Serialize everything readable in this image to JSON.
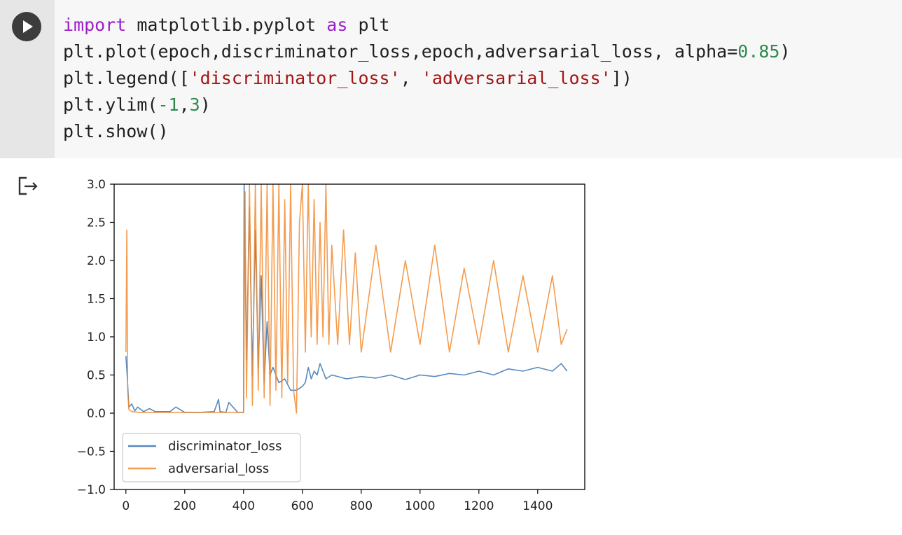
{
  "cell": {
    "run_button_icon": "play-icon",
    "code_lines": [
      [
        {
          "t": "import",
          "c": "kw"
        },
        {
          "t": " matplotlib.pyplot ",
          "c": ""
        },
        {
          "t": "as",
          "c": "kw"
        },
        {
          "t": " plt",
          "c": ""
        }
      ],
      [
        {
          "t": "plt.plot(epoch,discriminator_loss,epoch,adversarial_loss, alpha=",
          "c": ""
        },
        {
          "t": "0.85",
          "c": "num"
        },
        {
          "t": ")",
          "c": ""
        }
      ],
      [
        {
          "t": "plt.legend([",
          "c": ""
        },
        {
          "t": "'discriminator_loss'",
          "c": "str"
        },
        {
          "t": ", ",
          "c": ""
        },
        {
          "t": "'adversarial_loss'",
          "c": "str"
        },
        {
          "t": "])",
          "c": ""
        }
      ],
      [
        {
          "t": "plt.ylim(",
          "c": ""
        },
        {
          "t": "-1",
          "c": "num"
        },
        {
          "t": ",",
          "c": ""
        },
        {
          "t": "3",
          "c": "num"
        },
        {
          "t": ")",
          "c": ""
        }
      ],
      [
        {
          "t": "plt.show()",
          "c": ""
        }
      ]
    ]
  },
  "output": {
    "output_icon": "output-arrow-icon"
  },
  "colors": {
    "series_blue": "#3b76b4",
    "series_orange": "#f28b30"
  },
  "chart_data": {
    "type": "line",
    "title": "",
    "xlabel": "",
    "ylabel": "",
    "xlim": [
      -40,
      1560
    ],
    "ylim": [
      -1,
      3
    ],
    "xticks": [
      0,
      200,
      400,
      600,
      800,
      1000,
      1200,
      1400
    ],
    "yticks": [
      3.0,
      2.5,
      2.0,
      1.5,
      1.0,
      0.5,
      0.0,
      -0.5,
      -1.0
    ],
    "ytick_labels": [
      "3.0",
      "2.5",
      "2.0",
      "1.5",
      "1.0",
      "0.5",
      "0.0",
      "−0.5",
      "−1.0"
    ],
    "legend_position": "lower-left",
    "grid": false,
    "series": [
      {
        "name": "discriminator_loss",
        "color": "#3b76b4",
        "x": [
          0,
          5,
          10,
          20,
          30,
          40,
          60,
          80,
          100,
          150,
          170,
          200,
          250,
          300,
          315,
          320,
          340,
          350,
          380,
          400,
          402,
          410,
          420,
          430,
          440,
          450,
          460,
          470,
          480,
          490,
          500,
          520,
          540,
          560,
          580,
          600,
          610,
          620,
          630,
          640,
          650,
          660,
          680,
          700,
          750,
          800,
          850,
          900,
          950,
          1000,
          1050,
          1100,
          1150,
          1200,
          1250,
          1300,
          1350,
          1400,
          1450,
          1480,
          1500
        ],
        "y": [
          0.75,
          0.45,
          0.08,
          0.12,
          0.03,
          0.08,
          0.02,
          0.06,
          0.02,
          0.02,
          0.08,
          0.01,
          0.01,
          0.02,
          0.18,
          0.02,
          0.01,
          0.14,
          0.01,
          0.01,
          3.0,
          0.7,
          2.7,
          0.5,
          2.4,
          0.6,
          1.8,
          0.4,
          1.2,
          0.5,
          0.6,
          0.4,
          0.45,
          0.3,
          0.3,
          0.35,
          0.4,
          0.6,
          0.45,
          0.55,
          0.5,
          0.65,
          0.45,
          0.5,
          0.45,
          0.48,
          0.46,
          0.5,
          0.44,
          0.5,
          0.48,
          0.52,
          0.5,
          0.55,
          0.5,
          0.58,
          0.55,
          0.6,
          0.55,
          0.65,
          0.55
        ]
      },
      {
        "name": "adversarial_loss",
        "color": "#f28b30",
        "x": [
          0,
          3,
          6,
          10,
          20,
          50,
          100,
          200,
          300,
          400,
          405,
          410,
          420,
          430,
          440,
          450,
          460,
          470,
          480,
          490,
          500,
          510,
          520,
          530,
          540,
          550,
          560,
          570,
          580,
          590,
          600,
          610,
          620,
          630,
          640,
          650,
          660,
          670,
          680,
          690,
          700,
          720,
          740,
          760,
          780,
          800,
          850,
          900,
          950,
          1000,
          1050,
          1100,
          1150,
          1200,
          1250,
          1300,
          1350,
          1400,
          1450,
          1480,
          1500
        ],
        "y": [
          0.8,
          2.4,
          0.3,
          0.05,
          0.02,
          0.01,
          0.01,
          0.01,
          0.01,
          0.01,
          2.9,
          0.2,
          3.0,
          0.1,
          3.0,
          0.3,
          3.0,
          0.2,
          3.0,
          0.1,
          3.0,
          0.3,
          3.0,
          0.2,
          2.8,
          0.4,
          3.0,
          0.3,
          0.0,
          2.5,
          3.0,
          0.8,
          3.0,
          1.0,
          2.8,
          0.9,
          2.5,
          1.0,
          3.0,
          0.9,
          2.2,
          0.9,
          2.4,
          0.9,
          2.1,
          0.8,
          2.2,
          0.8,
          2.0,
          0.9,
          2.2,
          0.8,
          1.9,
          0.9,
          2.0,
          0.8,
          1.8,
          0.8,
          1.8,
          0.9,
          1.1
        ]
      }
    ]
  }
}
